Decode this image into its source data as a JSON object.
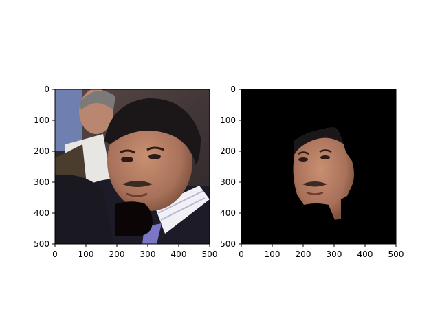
{
  "figure": {
    "background": "#ffffff",
    "panels": [
      {
        "name": "original-image",
        "xticks": [
          "0",
          "100",
          "200",
          "300",
          "400",
          "500"
        ],
        "yticks": [
          "0",
          "100",
          "200",
          "300",
          "400",
          "500"
        ]
      },
      {
        "name": "masked-face",
        "xticks": [
          "0",
          "100",
          "200",
          "300",
          "400",
          "500"
        ],
        "yticks": [
          "0",
          "100",
          "200",
          "300",
          "400",
          "500"
        ]
      }
    ]
  }
}
